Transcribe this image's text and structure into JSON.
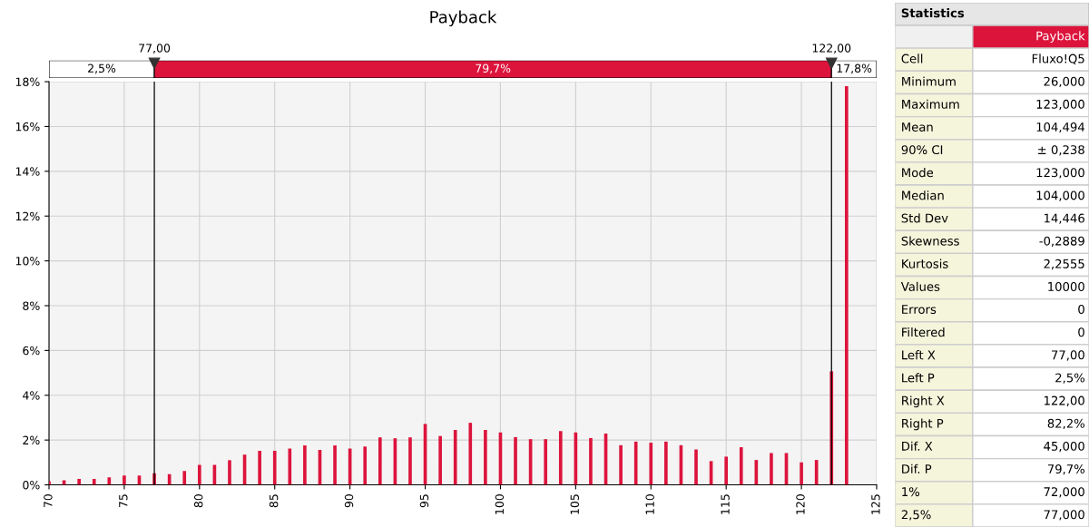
{
  "chart_data": [
    {
      "type": "bar",
      "title": "Payback",
      "x": [
        70,
        71,
        72,
        73,
        74,
        75,
        76,
        77,
        78,
        79,
        80,
        81,
        82,
        83,
        84,
        85,
        86,
        87,
        88,
        89,
        90,
        91,
        92,
        93,
        94,
        95,
        96,
        97,
        98,
        99,
        100,
        101,
        102,
        103,
        104,
        105,
        106,
        107,
        108,
        109,
        110,
        111,
        112,
        113,
        114,
        115,
        116,
        117,
        118,
        119,
        120,
        121,
        122,
        123
      ],
      "values": [
        0.16,
        0.2,
        0.26,
        0.26,
        0.33,
        0.42,
        0.42,
        0.52,
        0.48,
        0.62,
        0.89,
        0.89,
        1.1,
        1.35,
        1.52,
        1.52,
        1.62,
        1.76,
        1.56,
        1.76,
        1.62,
        1.71,
        2.12,
        2.08,
        2.12,
        2.72,
        2.18,
        2.45,
        2.77,
        2.45,
        2.34,
        2.13,
        2.04,
        2.04,
        2.4,
        2.34,
        2.09,
        2.29,
        1.77,
        1.93,
        1.88,
        1.93,
        1.77,
        1.58,
        1.06,
        1.26,
        1.68,
        1.11,
        1.42,
        1.42,
        1.0,
        1.11,
        5.07,
        17.8
      ],
      "color": "#dc143c",
      "xlim": [
        70,
        125
      ],
      "xticks": [
        70,
        75,
        80,
        85,
        90,
        95,
        100,
        105,
        110,
        115,
        120,
        125
      ],
      "ylim": [
        0,
        18
      ],
      "yticks": [
        {
          "value": 0,
          "label": "0%"
        },
        {
          "value": 2,
          "label": "2%"
        },
        {
          "value": 4,
          "label": "4%"
        },
        {
          "value": 6,
          "label": "6%"
        },
        {
          "value": 8,
          "label": "8%"
        },
        {
          "value": 10,
          "label": "10%"
        },
        {
          "value": 12,
          "label": "12%"
        },
        {
          "value": 14,
          "label": "14%"
        },
        {
          "value": 16,
          "label": "16%"
        },
        {
          "value": 18,
          "label": "18%"
        }
      ],
      "grid": true,
      "annotations": [
        "2,5%",
        "79,7%",
        "17,8%"
      ],
      "ref_lines": [
        {
          "axis": "x",
          "value": 77,
          "label": "77,00",
          "color": "#000000"
        },
        {
          "axis": "x",
          "value": 122,
          "label": "122,00",
          "color": "#000000"
        }
      ]
    },
    {
      "type": "other",
      "title": "Statistics",
      "subtitle": "Payback",
      "annotations": [
        "Cell",
        "Fluxo!Q5",
        "Minimum",
        "26,000",
        "Maximum",
        "123,000",
        "Mean",
        "104,494",
        "90% CI",
        "± 0,238",
        "Mode",
        "123,000",
        "Median",
        "104,000",
        "Std Dev",
        "14,446",
        "Skewness",
        "-0,2889",
        "Kurtosis",
        "2,2555",
        "Values",
        "10000",
        "Errors",
        "0",
        "Filtered",
        "0",
        "Left X",
        "77,00",
        "Left P",
        "2,5%",
        "Right X",
        "122,00",
        "Right P",
        "82,2%",
        "Dif. X",
        "45,000",
        "Dif. P",
        "79,7%",
        "1%",
        "72,000",
        "2,5%",
        "77,000"
      ]
    }
  ]
}
